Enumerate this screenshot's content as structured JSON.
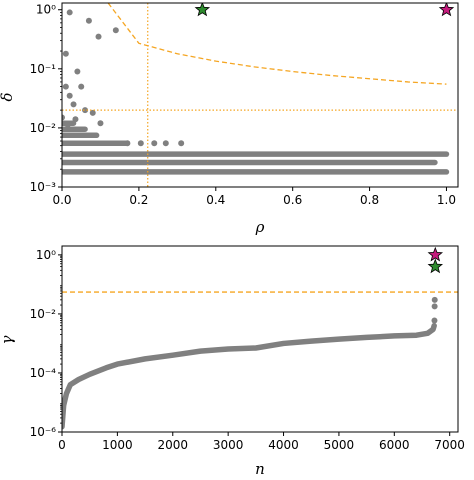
{
  "chart_data": [
    {
      "type": "scatter",
      "title": "",
      "xlabel": "ρ",
      "ylabel": "δ",
      "xlim": [
        0,
        1.03
      ],
      "ylim": [
        0.001,
        1.3
      ],
      "yscale": "log",
      "x_ticks": [
        0.0,
        0.2,
        0.4,
        0.6,
        0.8,
        1.0
      ],
      "x_tick_labels": [
        "0.0",
        "0.2",
        "0.4",
        "0.6",
        "0.8",
        "1.0"
      ],
      "y_ticks": [
        0.001,
        0.01,
        0.1,
        1
      ],
      "y_tick_labels": [
        "10⁻³",
        "10⁻²",
        "10⁻¹",
        "10⁰"
      ],
      "point_color": "#808080",
      "guide_color": "#f5a623",
      "star_colors": {
        "magenta": "#c51b7d",
        "green": "#2e8b2e"
      },
      "stars": [
        {
          "x": 0.365,
          "y": 1.0,
          "color": "green"
        },
        {
          "x": 1.0,
          "y": 1.0,
          "color": "magenta"
        }
      ],
      "bands": [
        {
          "y": 0.0018,
          "x_min": 0.0,
          "x_max": 1.0
        },
        {
          "y": 0.0026,
          "x_min": 0.0,
          "x_max": 0.97
        },
        {
          "y": 0.0036,
          "x_min": 0.0,
          "x_max": 1.0
        },
        {
          "y": 0.0055,
          "x_min": 0.0,
          "x_max": 0.17
        },
        {
          "y": 0.0075,
          "x_min": 0.0,
          "x_max": 0.09
        },
        {
          "y": 0.0095,
          "x_min": 0.0,
          "x_max": 0.06
        },
        {
          "y": 0.012,
          "x_min": 0.0,
          "x_max": 0.03
        }
      ],
      "points": [
        {
          "x": 0.02,
          "y": 0.9
        },
        {
          "x": 0.07,
          "y": 0.65
        },
        {
          "x": 0.14,
          "y": 0.45
        },
        {
          "x": 0.095,
          "y": 0.35
        },
        {
          "x": 0.01,
          "y": 0.18
        },
        {
          "x": 0.04,
          "y": 0.09
        },
        {
          "x": 0.01,
          "y": 0.05
        },
        {
          "x": 0.05,
          "y": 0.05
        },
        {
          "x": 0.02,
          "y": 0.035
        },
        {
          "x": 0.03,
          "y": 0.025
        },
        {
          "x": 0.0,
          "y": 0.015
        },
        {
          "x": 0.06,
          "y": 0.02
        },
        {
          "x": 0.1,
          "y": 0.012
        },
        {
          "x": 0.08,
          "y": 0.018
        },
        {
          "x": 0.17,
          "y": 0.0055
        },
        {
          "x": 0.205,
          "y": 0.0055
        },
        {
          "x": 0.24,
          "y": 0.0055
        },
        {
          "x": 0.27,
          "y": 0.0055
        },
        {
          "x": 0.31,
          "y": 0.0055
        },
        {
          "x": 0.015,
          "y": 0.01
        },
        {
          "x": 0.035,
          "y": 0.014
        }
      ],
      "curve": [
        {
          "x": 0.12,
          "y": 1.3
        },
        {
          "x": 0.2,
          "y": 0.27
        },
        {
          "x": 0.3,
          "y": 0.18
        },
        {
          "x": 0.4,
          "y": 0.135
        },
        {
          "x": 0.5,
          "y": 0.108
        },
        {
          "x": 0.6,
          "y": 0.09
        },
        {
          "x": 0.7,
          "y": 0.077
        },
        {
          "x": 0.8,
          "y": 0.068
        },
        {
          "x": 0.9,
          "y": 0.06
        },
        {
          "x": 1.0,
          "y": 0.055
        }
      ],
      "vline_x": 0.223,
      "hline_y": 0.02
    },
    {
      "type": "scatter",
      "title": "",
      "xlabel": "n",
      "ylabel": "γ",
      "xlim": [
        0,
        7150
      ],
      "ylim": [
        1e-06,
        2
      ],
      "yscale": "log",
      "x_ticks": [
        0,
        1000,
        2000,
        3000,
        4000,
        5000,
        6000,
        7000
      ],
      "x_tick_labels": [
        "0",
        "1000",
        "2000",
        "3000",
        "4000",
        "5000",
        "6000",
        "7000"
      ],
      "y_ticks": [
        1e-06,
        0.0001,
        0.01,
        1
      ],
      "y_tick_labels": [
        "10⁻⁶",
        "10⁻⁴",
        "10⁻²",
        "10⁰"
      ],
      "point_color": "#808080",
      "guide_color": "#f5a623",
      "hline_y": 0.055,
      "stars": [
        {
          "x": 6740,
          "y": 1.0,
          "color": "magenta"
        },
        {
          "x": 6740,
          "y": 0.4,
          "color": "green"
        }
      ],
      "sequence": [
        {
          "x": 0,
          "y": 1.5e-06
        },
        {
          "x": 30,
          "y": 8e-06
        },
        {
          "x": 80,
          "y": 2e-05
        },
        {
          "x": 150,
          "y": 4e-05
        },
        {
          "x": 300,
          "y": 6e-05
        },
        {
          "x": 500,
          "y": 9e-05
        },
        {
          "x": 800,
          "y": 0.00015
        },
        {
          "x": 1000,
          "y": 0.0002
        },
        {
          "x": 1500,
          "y": 0.0003
        },
        {
          "x": 2000,
          "y": 0.0004
        },
        {
          "x": 2500,
          "y": 0.00055
        },
        {
          "x": 3000,
          "y": 0.00065
        },
        {
          "x": 3500,
          "y": 0.0007
        },
        {
          "x": 4000,
          "y": 0.001
        },
        {
          "x": 4500,
          "y": 0.0012
        },
        {
          "x": 5000,
          "y": 0.0014
        },
        {
          "x": 5500,
          "y": 0.0016
        },
        {
          "x": 6000,
          "y": 0.0018
        },
        {
          "x": 6400,
          "y": 0.0019
        },
        {
          "x": 6600,
          "y": 0.0022
        },
        {
          "x": 6700,
          "y": 0.003
        },
        {
          "x": 6720,
          "y": 0.004
        }
      ],
      "outliers": [
        {
          "x": 6725,
          "y": 0.006
        },
        {
          "x": 6728,
          "y": 0.018
        },
        {
          "x": 6730,
          "y": 0.03
        }
      ]
    }
  ]
}
